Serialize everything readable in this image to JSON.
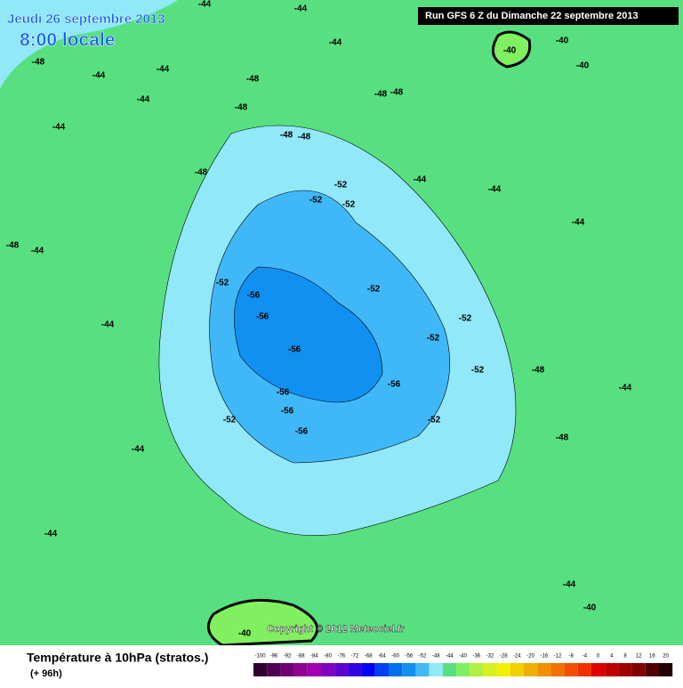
{
  "header": {
    "date": "Jeudi 26 septembre 2013",
    "time": "8:00 locale",
    "run": "Run GFS 6 Z du Dimanche 22 septembre 2013"
  },
  "copyright": "Copyright © 2012 Meteociel.fr",
  "legend": {
    "title": "Température à 10hPa (stratos.)",
    "subtitle": "(+ 96h)",
    "labels": [
      "-100",
      "-96",
      "-92",
      "-88",
      "-84",
      "-80",
      "-76",
      "-72",
      "-68",
      "-64",
      "-60",
      "-56",
      "-52",
      "-48",
      "-44",
      "-40",
      "-36",
      "-32",
      "-28",
      "-24",
      "-20",
      "-16",
      "-12",
      "-8",
      "-4",
      "0",
      "4",
      "8",
      "12",
      "16",
      "20"
    ],
    "colors": [
      "#300030",
      "#500050",
      "#700070",
      "#900090",
      "#a000b0",
      "#8000c0",
      "#6000d0",
      "#3000e0",
      "#0000f0",
      "#0040f0",
      "#0070f0",
      "#1090f0",
      "#40b8f8",
      "#90e8f8",
      "#58e080",
      "#80f060",
      "#b0f040",
      "#d8f020",
      "#f0f000",
      "#f0d000",
      "#f0b000",
      "#f09000",
      "#f07000",
      "#f05000",
      "#f03000",
      "#e00000",
      "#c00000",
      "#a00000",
      "#800000",
      "#500000",
      "#200000"
    ]
  },
  "contours": [
    "-44",
    "-44",
    "-44",
    "-44",
    "-44",
    "-44",
    "-44",
    "-44",
    "-44",
    "-44",
    "-44",
    "-44",
    "-44",
    "-44",
    "-44",
    "-44",
    "-48",
    "-48",
    "-48",
    "-48",
    "-48",
    "-48",
    "-48",
    "-48",
    "-48",
    "-48",
    "-48",
    "-52",
    "-52",
    "-52",
    "-52",
    "-52",
    "-52",
    "-52",
    "-52",
    "-52",
    "-52",
    "-56",
    "-56",
    "-56",
    "-56",
    "-56",
    "-56",
    "-56",
    "-40",
    "-40",
    "-40",
    "-40",
    "-40"
  ]
}
